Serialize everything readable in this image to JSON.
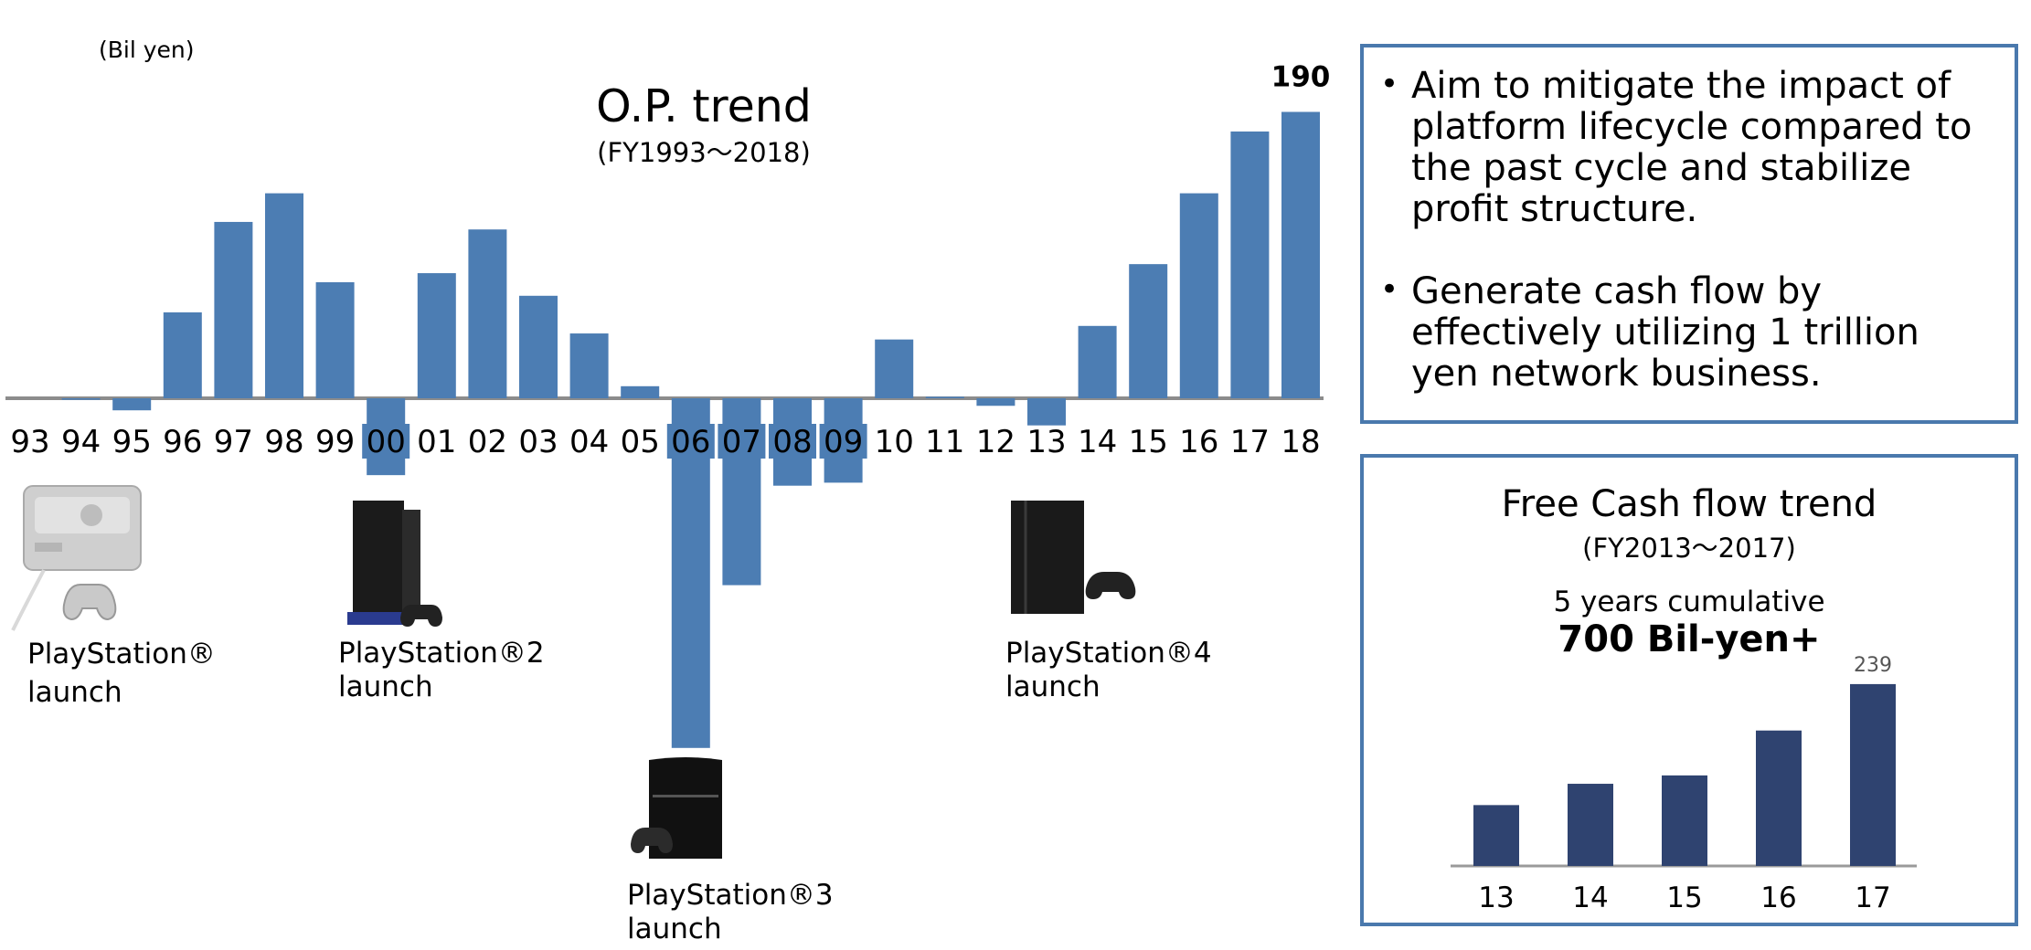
{
  "op_chart": {
    "unit": "(Bil yen)",
    "title": "O.P. trend",
    "subtitle": "(FY1993～2018)",
    "chart_data": {
      "type": "bar",
      "categories": [
        "93",
        "94",
        "95",
        "96",
        "97",
        "98",
        "99",
        "00",
        "01",
        "02",
        "03",
        "04",
        "05",
        "06",
        "07",
        "08",
        "09",
        "10",
        "11",
        "12",
        "13",
        "14",
        "15",
        "16",
        "17",
        "18"
      ],
      "values": [
        0,
        -1,
        -8,
        57,
        117,
        136,
        77,
        -51,
        83,
        112,
        68,
        43,
        8,
        -232,
        -124,
        -58,
        -56,
        39,
        1,
        -5,
        -18,
        48,
        89,
        136,
        177,
        190
      ],
      "highlighted_categories": [
        "00",
        "06",
        "07",
        "08",
        "09"
      ],
      "data_labels": [
        {
          "category": "18",
          "text": "190"
        }
      ],
      "title": "O.P. trend",
      "ylabel": "(Bil yen)"
    },
    "launches": [
      {
        "name": "PlayStation®",
        "suffix": "launch",
        "icon": "playstation-console-icon"
      },
      {
        "name": "PlayStation®2",
        "suffix": "launch",
        "icon": "playstation-2-console-icon"
      },
      {
        "name": "PlayStation®3",
        "suffix": "launch",
        "icon": "playstation-3-console-icon"
      },
      {
        "name": "PlayStation®4",
        "suffix": "launch",
        "icon": "playstation-4-console-icon"
      }
    ]
  },
  "bullets": [
    "Aim to mitigate the impact of platform lifecycle compared to the past cycle and stabilize profit structure.",
    "Generate cash flow by effectively utilizing 1 trillion yen network business."
  ],
  "fcf": {
    "title": "Free Cash flow trend",
    "subtitle": "(FY2013～2017)",
    "cumulative_label": "5 years cumulative",
    "cumulative_value": "700 Bil-yen+",
    "chart_data": {
      "type": "bar",
      "categories": [
        "13",
        "14",
        "15",
        "16",
        "17"
      ],
      "values": [
        80,
        108,
        119,
        178,
        239
      ],
      "data_labels": [
        {
          "category": "17",
          "text": "239"
        }
      ],
      "title": "Free Cash flow trend"
    }
  },
  "colors": {
    "op_bar": "#4c7db3",
    "fcf_bar": "#2f4370",
    "panel_border": "#4a79ad"
  }
}
